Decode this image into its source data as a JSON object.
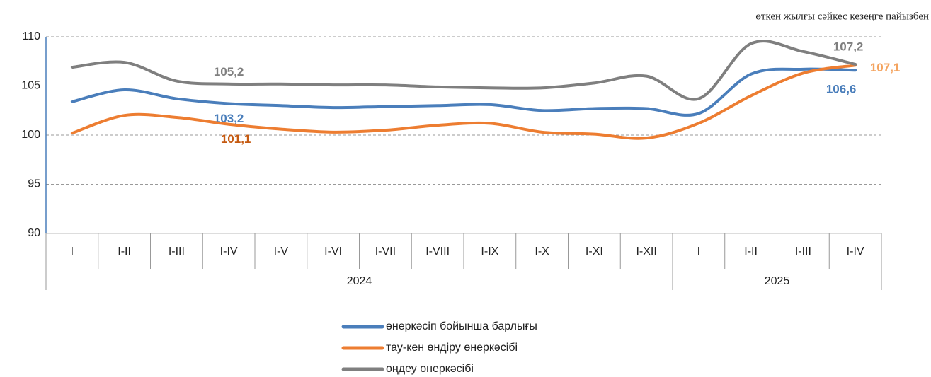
{
  "chart_data": {
    "type": "line",
    "unit_note": "өткен жылғы сәйкес кезеңге пайызбен",
    "groups": [
      {
        "label": "2024",
        "categories": [
          "I",
          "I-II",
          "I-III",
          "I-IV",
          "I-V",
          "I-VI",
          "I-VII",
          "I-VIII",
          "I-IX",
          "I-X",
          "I-XI",
          "I-XII"
        ]
      },
      {
        "label": "2025",
        "categories": [
          "I",
          "I-II",
          "I-III",
          "I-IV"
        ]
      }
    ],
    "series": [
      {
        "name": "өнеркәсіп бойынша барлығы",
        "color": "#4a7ebb",
        "values": [
          103.4,
          104.6,
          103.7,
          103.2,
          103.0,
          102.8,
          102.9,
          103.0,
          103.1,
          102.5,
          102.7,
          102.7,
          102.2,
          106.2,
          106.7,
          106.6
        ],
        "value_labels": [
          null,
          null,
          null,
          "103,2",
          null,
          null,
          null,
          null,
          null,
          null,
          null,
          null,
          null,
          null,
          null,
          "106,6"
        ]
      },
      {
        "name": "тау-кен өндіру өнеркәсібі",
        "color": "#ed7d31",
        "values": [
          100.2,
          102.0,
          101.8,
          101.1,
          100.6,
          100.3,
          100.5,
          101.0,
          101.2,
          100.3,
          100.1,
          99.7,
          101.2,
          104.0,
          106.3,
          107.1
        ],
        "value_labels": [
          null,
          null,
          null,
          "101,1",
          null,
          null,
          null,
          null,
          null,
          null,
          null,
          null,
          null,
          null,
          null,
          "107,1"
        ]
      },
      {
        "name": "өңдеу өнеркәсібі",
        "color": "#7f7f7f",
        "values": [
          106.9,
          107.4,
          105.5,
          105.2,
          105.2,
          105.1,
          105.1,
          104.9,
          104.8,
          104.8,
          105.3,
          106.0,
          103.7,
          109.3,
          108.5,
          107.2
        ],
        "value_labels": [
          null,
          null,
          null,
          "105,2",
          null,
          null,
          null,
          null,
          null,
          null,
          null,
          null,
          null,
          null,
          null,
          "107,2"
        ]
      }
    ],
    "ylim": [
      90,
      110
    ],
    "yticks": [
      90,
      95,
      100,
      105,
      110
    ],
    "grid": true
  }
}
